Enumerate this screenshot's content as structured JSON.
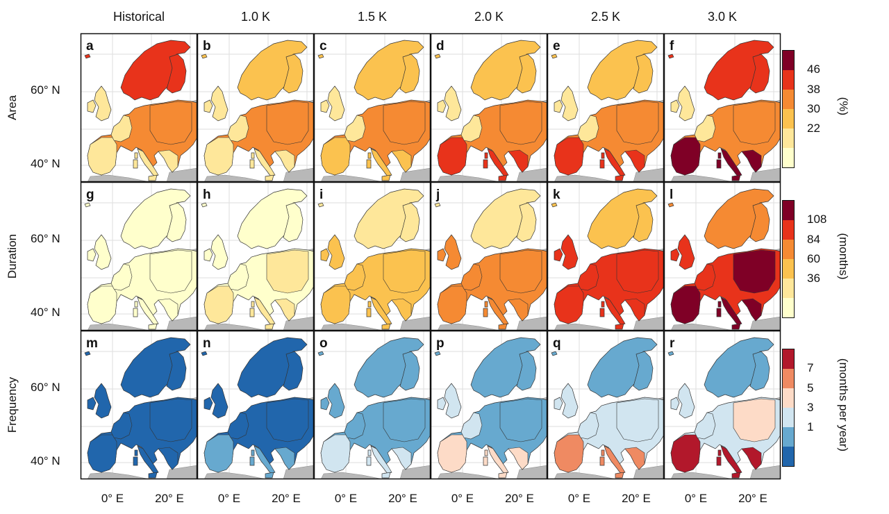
{
  "columns": [
    "Historical",
    "1.0 K",
    "1.5 K",
    "2.0 K",
    "2.5 K",
    "3.0 K"
  ],
  "rows": [
    {
      "label": "Area",
      "unit": "(%)",
      "colorbar": {
        "ticks": [
          "46",
          "38",
          "30",
          "22"
        ],
        "colors": [
          "#7f0026",
          "#e8331b",
          "#f58a33",
          "#fbc24f",
          "#fee79a",
          "#ffffcc"
        ]
      },
      "panels": [
        "a",
        "b",
        "c",
        "d",
        "e",
        "f"
      ]
    },
    {
      "label": "Duration",
      "unit": "(months)",
      "colorbar": {
        "ticks": [
          "108",
          "84",
          "60",
          "36"
        ],
        "colors": [
          "#7f0026",
          "#e8331b",
          "#f58a33",
          "#fbc24f",
          "#fee79a",
          "#ffffcc"
        ]
      },
      "panels": [
        "g",
        "h",
        "i",
        "j",
        "k",
        "l"
      ]
    },
    {
      "label": "Frequency",
      "unit": "(months per year)",
      "colorbar": {
        "ticks": [
          "7",
          "5",
          "3",
          "1"
        ],
        "colors": [
          "#b2182b",
          "#ef8a62",
          "#fddbc7",
          "#d1e5f0",
          "#67a9cf",
          "#2166ac"
        ]
      },
      "panels": [
        "m",
        "n",
        "o",
        "p",
        "q",
        "r"
      ]
    }
  ],
  "lat_labels": [
    "60° N",
    "40° N"
  ],
  "lon_labels": [
    "0° E",
    "20° E"
  ],
  "colors": {
    "land_gray": "#b8b8b8",
    "grid": "#dddddd",
    "border": "#111111"
  }
}
